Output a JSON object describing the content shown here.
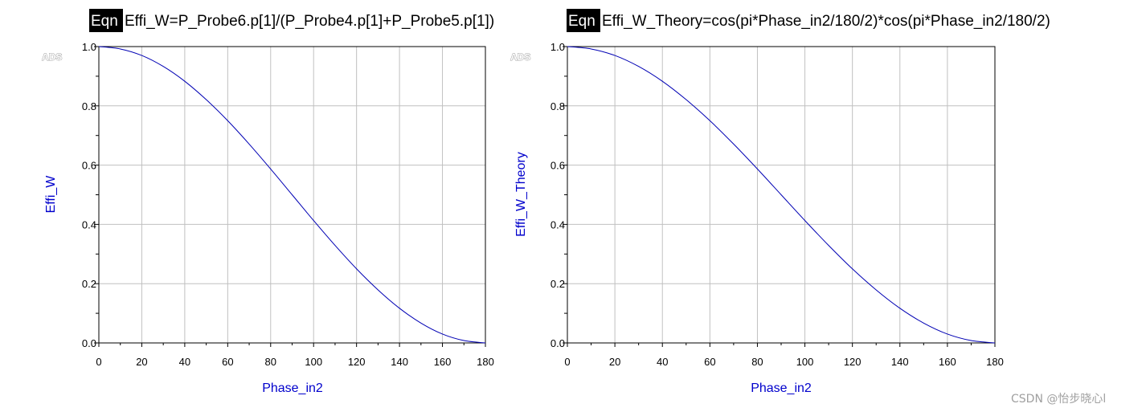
{
  "plots": [
    {
      "eqn_tag": "Eqn",
      "equation": "Effi_W=P_Probe6.p[1]/(P_Probe4.p[1]+P_Probe5.p[1])",
      "ads_mark": "ADS"
    },
    {
      "eqn_tag": "Eqn",
      "equation": "Effi_W_Theory=cos(pi*Phase_in2/180/2)*cos(pi*Phase_in2/180/2)",
      "ads_mark": "ADS"
    }
  ],
  "chart_data": [
    {
      "type": "line",
      "title": "",
      "xlabel": "Phase_in2",
      "ylabel": "Effi_W",
      "xlim": [
        0,
        180
      ],
      "ylim": [
        0,
        1.0
      ],
      "x_ticks": [
        "0",
        "20",
        "40",
        "60",
        "80",
        "100",
        "120",
        "140",
        "160",
        "180"
      ],
      "y_ticks": [
        "0.0",
        "0.2",
        "0.4",
        "0.6",
        "0.8",
        "1.0"
      ],
      "grid": true,
      "line_color": "#0000b4",
      "x": [
        0,
        10,
        20,
        30,
        40,
        50,
        60,
        70,
        80,
        90,
        100,
        110,
        120,
        130,
        140,
        150,
        160,
        170,
        180
      ],
      "y": [
        1.0,
        0.992,
        0.97,
        0.933,
        0.883,
        0.821,
        0.75,
        0.671,
        0.587,
        0.5,
        0.413,
        0.329,
        0.25,
        0.179,
        0.117,
        0.067,
        0.03,
        0.008,
        0.0
      ]
    },
    {
      "type": "line",
      "title": "",
      "xlabel": "Phase_in2",
      "ylabel": "Effi_W_Theory",
      "xlim": [
        0,
        180
      ],
      "ylim": [
        0,
        1.0
      ],
      "x_ticks": [
        "0",
        "20",
        "40",
        "60",
        "80",
        "100",
        "120",
        "140",
        "160",
        "180"
      ],
      "y_ticks": [
        "0.0",
        "0.2",
        "0.4",
        "0.6",
        "0.8",
        "1.0"
      ],
      "grid": true,
      "line_color": "#0000b4",
      "x": [
        0,
        10,
        20,
        30,
        40,
        50,
        60,
        70,
        80,
        90,
        100,
        110,
        120,
        130,
        140,
        150,
        160,
        170,
        180
      ],
      "y": [
        1.0,
        0.992,
        0.97,
        0.933,
        0.883,
        0.821,
        0.75,
        0.671,
        0.587,
        0.5,
        0.413,
        0.329,
        0.25,
        0.179,
        0.117,
        0.067,
        0.03,
        0.008,
        0.0
      ]
    }
  ],
  "watermark": "CSDN @怡步晓心l"
}
